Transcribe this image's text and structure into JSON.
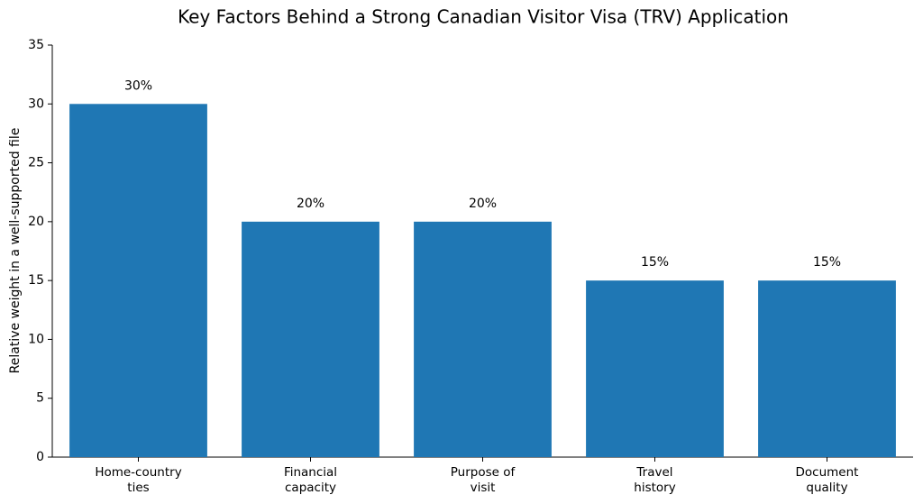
{
  "chart_data": {
    "type": "bar",
    "title": "Key Factors Behind a Strong Canadian Visitor Visa (TRV) Application",
    "ylabel": "Relative weight in a well-supported file",
    "categories": [
      "Home-country\nties",
      "Financial\ncapacity",
      "Purpose of\nvisit",
      "Travel\nhistory",
      "Document\nquality"
    ],
    "values": [
      30,
      20,
      20,
      15,
      15
    ],
    "value_labels": [
      "30%",
      "20%",
      "20%",
      "15%",
      "15%"
    ],
    "color": "#1f77b4",
    "ylim": [
      0,
      35
    ],
    "yticks": [
      0,
      5,
      10,
      15,
      20,
      25,
      30,
      35
    ],
    "grid": false
  }
}
